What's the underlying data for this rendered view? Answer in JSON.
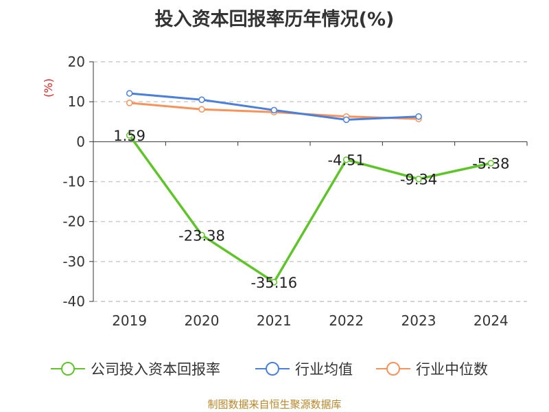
{
  "chart_data": {
    "type": "line",
    "title": "投入资本回报率历年情况(%)",
    "ylabel": "(%)",
    "categories": [
      "2019",
      "2020",
      "2021",
      "2022",
      "2023",
      "2024"
    ],
    "ylim": [
      -40,
      20
    ],
    "yticks": [
      "20",
      "10",
      "0",
      "-10",
      "-20",
      "-30",
      "-40"
    ],
    "grid": true,
    "legend_position": "bottom",
    "series": [
      {
        "name": "公司投入资本回报率",
        "color": "#5fc42a",
        "values": [
          1.59,
          -23.38,
          -35.16,
          -4.51,
          -9.34,
          -5.38
        ],
        "labels": [
          "1.59",
          "-23.38",
          "-35.16",
          "-4.51",
          "-9.34",
          "-5.38"
        ]
      },
      {
        "name": "行业均值",
        "color": "#4a7fdb",
        "values": [
          12.1,
          10.5,
          7.9,
          5.5,
          6.3,
          null
        ]
      },
      {
        "name": "行业中位数",
        "color": "#f7935a",
        "values": [
          9.7,
          8.1,
          7.4,
          6.3,
          5.7,
          null
        ]
      }
    ]
  },
  "source": "制图数据来自恒生聚源数据库"
}
